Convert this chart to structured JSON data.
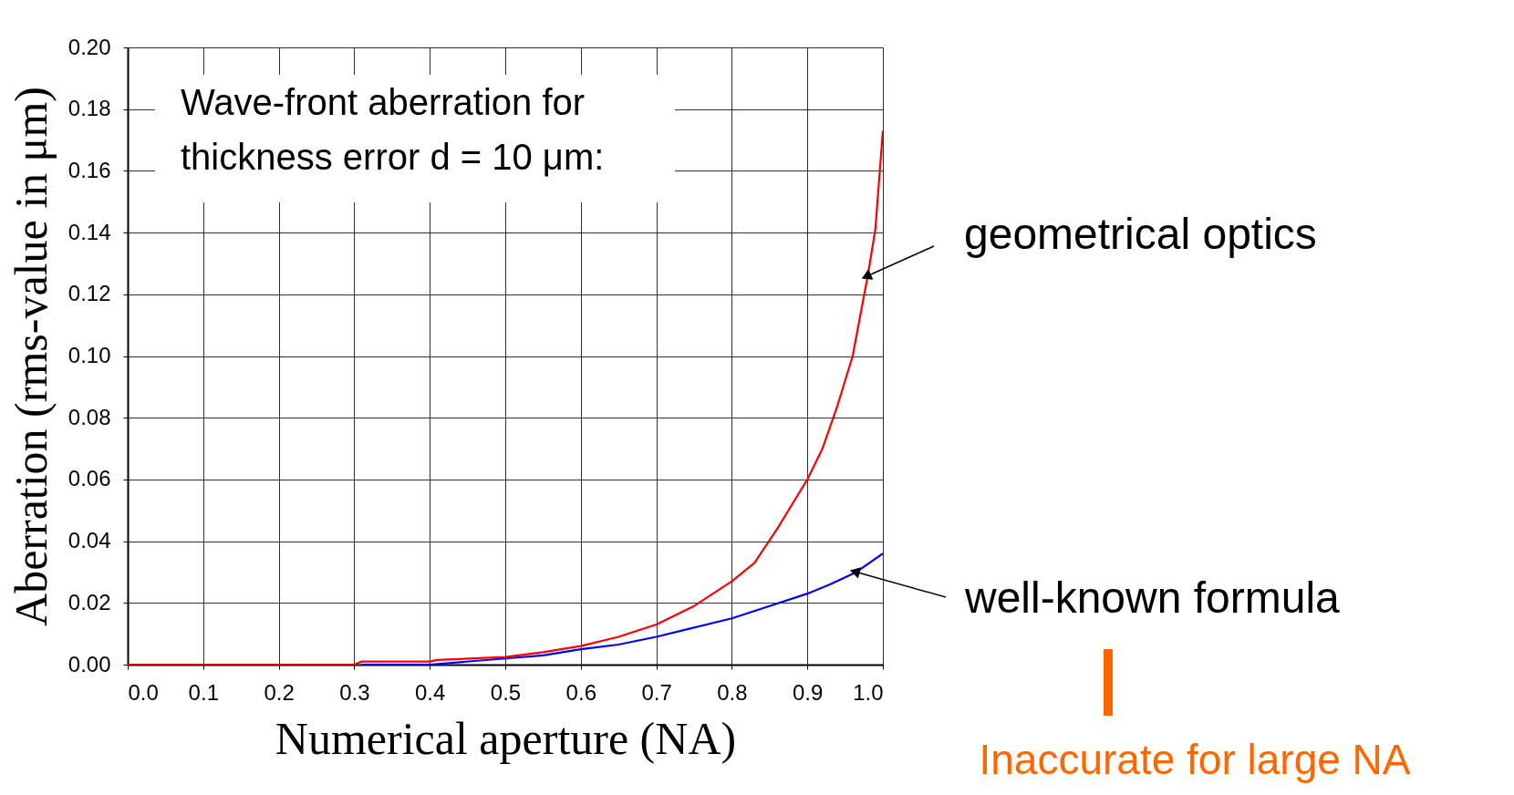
{
  "chart_data": {
    "type": "line",
    "xlabel": "Numerical aperture (NA)",
    "ylabel": "Aberration (rms-value in μm)",
    "xlim": [
      0,
      1
    ],
    "ylim": [
      0,
      0.2
    ],
    "xticks": [
      {
        "value": 0,
        "label": "0.0"
      },
      {
        "value": 0.1,
        "label": "0.1"
      },
      {
        "value": 0.2,
        "label": "0.2"
      },
      {
        "value": 0.3,
        "label": "0.3"
      },
      {
        "value": 0.4,
        "label": "0.4"
      },
      {
        "value": 0.5,
        "label": "0.5"
      },
      {
        "value": 0.6,
        "label": "0.6"
      },
      {
        "value": 0.7,
        "label": "0.7"
      },
      {
        "value": 0.8,
        "label": "0.8"
      },
      {
        "value": 0.9,
        "label": "0.9"
      },
      {
        "value": 1,
        "label": "1.0"
      }
    ],
    "yticks": [
      {
        "value": 0,
        "label": "0.00"
      },
      {
        "value": 0.02,
        "label": "0.02"
      },
      {
        "value": 0.04,
        "label": "0.04"
      },
      {
        "value": 0.06,
        "label": "0.06"
      },
      {
        "value": 0.08,
        "label": "0.08"
      },
      {
        "value": 0.1,
        "label": "0.10"
      },
      {
        "value": 0.12,
        "label": "0.12"
      },
      {
        "value": 0.14,
        "label": "0.14"
      },
      {
        "value": 0.16,
        "label": "0.16"
      },
      {
        "value": 0.18,
        "label": "0.18"
      },
      {
        "value": 0.2,
        "label": "0.20"
      }
    ],
    "grid": true,
    "legend": "right",
    "marker": "none",
    "line_style": "solid",
    "series": [
      {
        "name": "geometrical optics",
        "color": "#ff0000",
        "x": [
          0,
          0.1,
          0.2,
          0.3,
          0.31,
          0.4,
          0.41,
          0.5,
          0.55,
          0.6,
          0.65,
          0.7,
          0.75,
          0.8,
          0.83,
          0.86,
          0.88,
          0.9,
          0.92,
          0.94,
          0.96,
          0.98,
          0.99,
          1.0
        ],
        "values": [
          0,
          0,
          0,
          0,
          0.001,
          0.001,
          0.0015,
          0.0025,
          0.004,
          0.006,
          0.009,
          0.013,
          0.019,
          0.027,
          0.033,
          0.044,
          0.052,
          0.06,
          0.07,
          0.084,
          0.1,
          0.126,
          0.141,
          0.173
        ]
      },
      {
        "name": "well-known formula",
        "color": "#0000ff",
        "x": [
          0.31,
          0.4,
          0.5,
          0.55,
          0.6,
          0.65,
          0.7,
          0.75,
          0.8,
          0.85,
          0.9,
          0.93,
          0.965,
          1.0
        ],
        "values": [
          0,
          0,
          0.002,
          0.003,
          0.005,
          0.0065,
          0.009,
          0.012,
          0.015,
          0.019,
          0.023,
          0.026,
          0.03,
          0.036
        ]
      }
    ],
    "annotations": [
      "Wave-front aberration for\nthickness error d = 10 μm:",
      "Inaccurate for large NA"
    ]
  }
}
